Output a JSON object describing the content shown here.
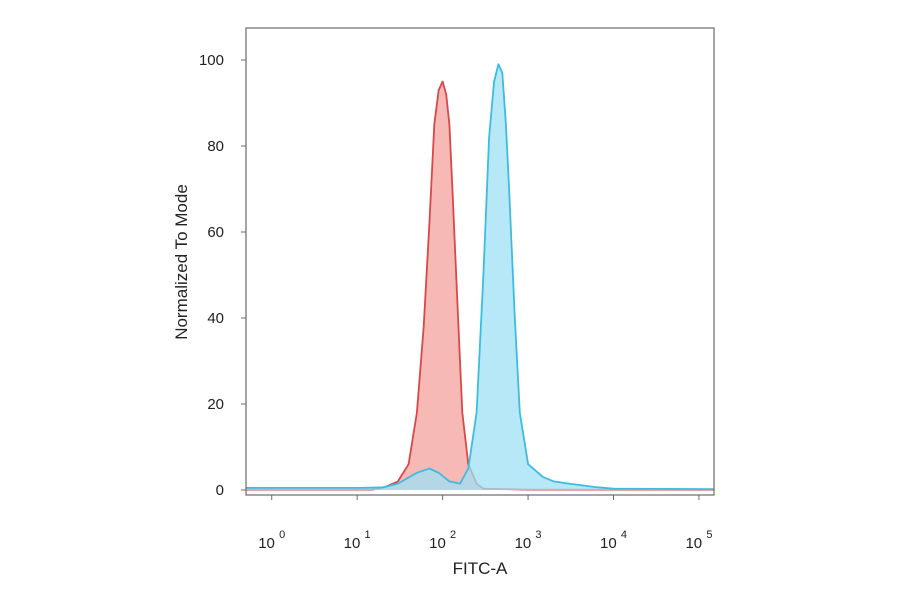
{
  "chart_data": {
    "type": "area",
    "xlabel": "FITC-A",
    "ylabel": "Normalized To Mode",
    "x_scale": "log",
    "xlim": [
      0.5,
      150000
    ],
    "ylim": [
      0,
      102
    ],
    "x_ticks": [
      {
        "base": "10",
        "exp": "0",
        "value": 1
      },
      {
        "base": "10",
        "exp": "1",
        "value": 10
      },
      {
        "base": "10",
        "exp": "2",
        "value": 100
      },
      {
        "base": "10",
        "exp": "3",
        "value": 1000
      },
      {
        "base": "10",
        "exp": "4",
        "value": 10000
      },
      {
        "base": "10",
        "exp": "5",
        "value": 100000
      }
    ],
    "y_ticks": [
      "0",
      "20",
      "40",
      "60",
      "80",
      "100"
    ],
    "grid": false,
    "series": [
      {
        "color": "#d94848",
        "fill": "#f4a19c",
        "x": [
          0.5,
          15,
          20,
          30,
          40,
          50,
          60,
          70,
          80,
          90,
          100,
          110,
          120,
          130,
          150,
          170,
          200,
          250,
          300,
          1000,
          150000
        ],
        "values": [
          0.1,
          0.1,
          0.5,
          2,
          6,
          18,
          38,
          62,
          85,
          93,
          95,
          92,
          85,
          70,
          42,
          18,
          6,
          1.5,
          0.3,
          0.1,
          0.1
        ]
      },
      {
        "color": "#3bbce0",
        "fill": "#9fe0f5",
        "x": [
          0.5,
          10,
          20,
          30,
          50,
          70,
          90,
          120,
          160,
          200,
          250,
          300,
          350,
          400,
          450,
          500,
          550,
          600,
          700,
          800,
          1000,
          1500,
          2000,
          3000,
          6000,
          10000,
          150000
        ],
        "values": [
          0.5,
          0.5,
          0.6,
          1.5,
          4,
          5,
          4,
          2,
          1.5,
          5,
          18,
          50,
          82,
          95,
          99,
          97,
          85,
          70,
          40,
          18,
          6,
          3,
          2,
          1.5,
          0.7,
          0.3,
          0.2
        ]
      }
    ]
  }
}
